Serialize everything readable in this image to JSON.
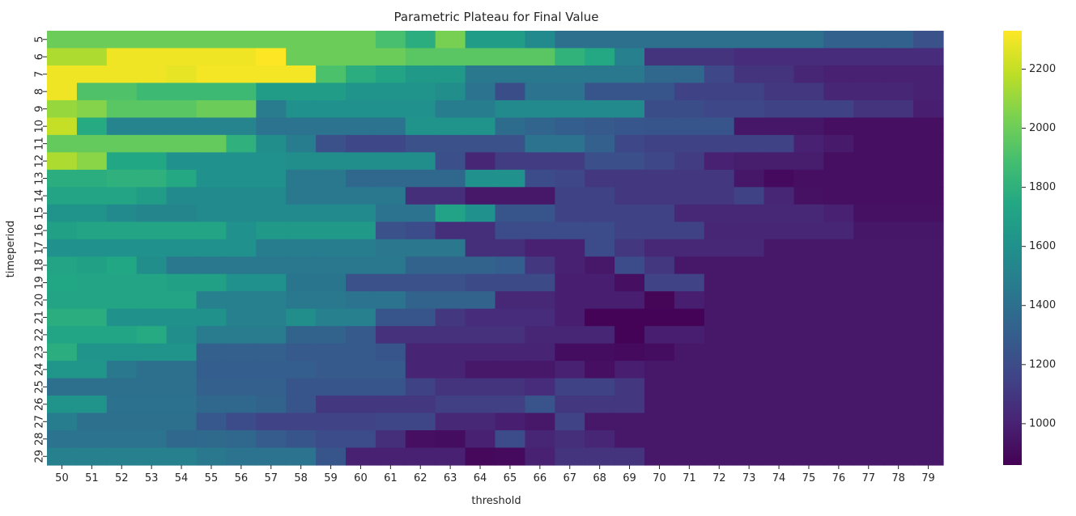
{
  "chart_data": {
    "type": "heatmap",
    "title": "Parametric Plateau for Final Value",
    "xlabel": "threshold",
    "ylabel": "timeperiod",
    "x": [
      50,
      51,
      52,
      53,
      54,
      55,
      56,
      57,
      58,
      59,
      60,
      61,
      62,
      63,
      64,
      65,
      66,
      67,
      68,
      69,
      70,
      71,
      72,
      73,
      74,
      75,
      76,
      77,
      78,
      79
    ],
    "y": [
      5,
      6,
      7,
      8,
      9,
      10,
      11,
      12,
      13,
      14,
      15,
      16,
      17,
      18,
      19,
      20,
      21,
      22,
      23,
      24,
      25,
      26,
      27,
      28,
      29
    ],
    "colormap": "viridis",
    "vmin": 860,
    "vmax": 2330,
    "colorbar_ticks": [
      1000,
      1200,
      1400,
      1600,
      1800,
      2000,
      2200
    ],
    "z": [
      [
        2000,
        2000,
        2000,
        2000,
        2000,
        2000,
        2000,
        2000,
        2000,
        2000,
        2000,
        1900,
        1780,
        2030,
        1680,
        1680,
        1560,
        1400,
        1400,
        1400,
        1400,
        1400,
        1400,
        1400,
        1400,
        1400,
        1320,
        1320,
        1320,
        1230
      ],
      [
        2150,
        2150,
        2300,
        2300,
        2300,
        2300,
        2300,
        2330,
        2000,
        2000,
        2000,
        2000,
        1950,
        1950,
        1950,
        1950,
        1950,
        1810,
        1750,
        1500,
        1080,
        1080,
        1080,
        1050,
        1050,
        1050,
        1050,
        1050,
        1050,
        1050
      ],
      [
        2300,
        2300,
        2300,
        2300,
        2280,
        2310,
        2310,
        2310,
        2310,
        1910,
        1780,
        1720,
        1650,
        1650,
        1450,
        1450,
        1450,
        1450,
        1450,
        1450,
        1350,
        1350,
        1180,
        1080,
        1080,
        1020,
        1000,
        1000,
        1000,
        1000
      ],
      [
        2300,
        1920,
        1920,
        1860,
        1860,
        1860,
        1860,
        1680,
        1680,
        1680,
        1620,
        1620,
        1620,
        1580,
        1420,
        1210,
        1420,
        1420,
        1250,
        1250,
        1250,
        1150,
        1150,
        1150,
        1100,
        1100,
        1020,
        1020,
        1020,
        1000
      ],
      [
        2100,
        2060,
        1950,
        1950,
        1950,
        2000,
        2000,
        1470,
        1600,
        1600,
        1600,
        1600,
        1600,
        1480,
        1480,
        1560,
        1560,
        1560,
        1560,
        1560,
        1210,
        1210,
        1180,
        1180,
        1150,
        1150,
        1150,
        1080,
        1080,
        990
      ],
      [
        2200,
        1760,
        1520,
        1520,
        1520,
        1520,
        1520,
        1420,
        1420,
        1420,
        1420,
        1420,
        1620,
        1620,
        1620,
        1380,
        1340,
        1300,
        1280,
        1260,
        1250,
        1250,
        1250,
        950,
        950,
        950,
        920,
        920,
        920,
        920
      ],
      [
        1980,
        1980,
        1980,
        1980,
        1980,
        1980,
        1800,
        1580,
        1480,
        1230,
        1180,
        1180,
        1230,
        1230,
        1230,
        1230,
        1420,
        1420,
        1310,
        1180,
        1150,
        1150,
        1150,
        1150,
        1150,
        1000,
        970,
        920,
        920,
        920
      ],
      [
        2150,
        2070,
        1740,
        1740,
        1600,
        1600,
        1600,
        1600,
        1580,
        1580,
        1580,
        1580,
        1580,
        1220,
        1020,
        1120,
        1120,
        1120,
        1220,
        1220,
        1180,
        1120,
        1000,
        980,
        980,
        980,
        920,
        920,
        920,
        920
      ],
      [
        1780,
        1780,
        1800,
        1800,
        1750,
        1600,
        1600,
        1600,
        1450,
        1450,
        1350,
        1350,
        1350,
        1350,
        1600,
        1600,
        1200,
        1180,
        1100,
        1100,
        1100,
        1100,
        1100,
        950,
        900,
        920,
        920,
        920,
        920,
        920
      ],
      [
        1720,
        1720,
        1720,
        1680,
        1560,
        1560,
        1560,
        1560,
        1450,
        1450,
        1450,
        1450,
        1060,
        1060,
        960,
        960,
        960,
        1150,
        1150,
        1100,
        1100,
        1100,
        1100,
        1150,
        1020,
        930,
        920,
        920,
        920,
        920
      ],
      [
        1620,
        1620,
        1560,
        1530,
        1530,
        1560,
        1560,
        1560,
        1560,
        1560,
        1560,
        1420,
        1420,
        1710,
        1600,
        1250,
        1250,
        1150,
        1150,
        1150,
        1150,
        1030,
        1030,
        1030,
        1030,
        1030,
        1000,
        930,
        930,
        930
      ],
      [
        1700,
        1720,
        1720,
        1720,
        1720,
        1720,
        1600,
        1650,
        1650,
        1650,
        1650,
        1230,
        1200,
        1060,
        1060,
        1200,
        1200,
        1200,
        1200,
        1150,
        1150,
        1150,
        1020,
        1020,
        1020,
        1020,
        1020,
        950,
        950,
        950
      ],
      [
        1600,
        1600,
        1600,
        1600,
        1600,
        1600,
        1600,
        1480,
        1480,
        1480,
        1480,
        1440,
        1440,
        1440,
        1060,
        1060,
        1000,
        1000,
        1200,
        1100,
        1030,
        1030,
        1030,
        1030,
        960,
        960,
        960,
        960,
        960,
        960
      ],
      [
        1720,
        1700,
        1740,
        1580,
        1450,
        1450,
        1450,
        1450,
        1450,
        1450,
        1450,
        1450,
        1330,
        1330,
        1330,
        1300,
        1100,
        1000,
        960,
        1200,
        1100,
        960,
        960,
        960,
        960,
        960,
        960,
        960,
        960,
        960
      ],
      [
        1740,
        1720,
        1720,
        1720,
        1700,
        1700,
        1600,
        1600,
        1430,
        1430,
        1230,
        1230,
        1230,
        1230,
        1190,
        1190,
        1190,
        990,
        990,
        920,
        1160,
        1160,
        960,
        960,
        960,
        960,
        960,
        960,
        960,
        960
      ],
      [
        1720,
        1720,
        1720,
        1720,
        1720,
        1500,
        1500,
        1500,
        1450,
        1450,
        1420,
        1420,
        1330,
        1330,
        1330,
        1030,
        1030,
        990,
        990,
        990,
        880,
        990,
        960,
        960,
        960,
        960,
        960,
        960,
        960,
        960
      ],
      [
        1780,
        1780,
        1610,
        1610,
        1610,
        1610,
        1500,
        1500,
        1580,
        1500,
        1500,
        1250,
        1250,
        1100,
        1050,
        1050,
        1050,
        990,
        870,
        870,
        870,
        870,
        960,
        960,
        960,
        960,
        960,
        960,
        960,
        960
      ],
      [
        1730,
        1730,
        1730,
        1760,
        1580,
        1470,
        1470,
        1470,
        1330,
        1330,
        1280,
        1070,
        1070,
        1070,
        1070,
        1070,
        1020,
        1020,
        1020,
        870,
        990,
        990,
        960,
        960,
        960,
        960,
        960,
        960,
        960,
        960
      ],
      [
        1780,
        1620,
        1620,
        1620,
        1620,
        1310,
        1310,
        1310,
        1280,
        1280,
        1280,
        1250,
        1010,
        1010,
        1010,
        1010,
        1010,
        910,
        910,
        900,
        910,
        960,
        960,
        960,
        960,
        960,
        960,
        960,
        960,
        960
      ],
      [
        1630,
        1630,
        1450,
        1400,
        1400,
        1300,
        1300,
        1300,
        1300,
        1280,
        1280,
        1280,
        1010,
        1010,
        960,
        960,
        960,
        1000,
        920,
        990,
        960,
        960,
        960,
        960,
        960,
        960,
        960,
        960,
        960,
        960
      ],
      [
        1400,
        1400,
        1400,
        1400,
        1400,
        1310,
        1310,
        1310,
        1250,
        1250,
        1250,
        1250,
        1150,
        1080,
        1080,
        1080,
        1050,
        1150,
        1150,
        1100,
        960,
        960,
        960,
        960,
        960,
        960,
        960,
        960,
        960,
        960
      ],
      [
        1620,
        1620,
        1410,
        1410,
        1410,
        1350,
        1350,
        1330,
        1250,
        1100,
        1100,
        1100,
        1100,
        1140,
        1140,
        1140,
        1240,
        1100,
        1100,
        1100,
        960,
        960,
        960,
        960,
        960,
        960,
        960,
        960,
        960,
        960
      ],
      [
        1480,
        1400,
        1400,
        1400,
        1400,
        1270,
        1200,
        1160,
        1160,
        1160,
        1160,
        1170,
        1170,
        1030,
        1030,
        990,
        960,
        1160,
        960,
        960,
        960,
        960,
        960,
        960,
        960,
        960,
        960,
        960,
        960,
        960
      ],
      [
        1420,
        1420,
        1420,
        1420,
        1350,
        1370,
        1350,
        1290,
        1250,
        1200,
        1200,
        1060,
        920,
        910,
        1000,
        1200,
        1020,
        1060,
        1020,
        960,
        960,
        960,
        960,
        960,
        960,
        960,
        960,
        960,
        960,
        960
      ],
      [
        1500,
        1500,
        1500,
        1500,
        1500,
        1450,
        1420,
        1420,
        1420,
        1250,
        1000,
        1000,
        1000,
        1000,
        890,
        900,
        1000,
        1080,
        1080,
        1080,
        960,
        960,
        960,
        960,
        960,
        960,
        960,
        960,
        960,
        960
      ]
    ]
  }
}
